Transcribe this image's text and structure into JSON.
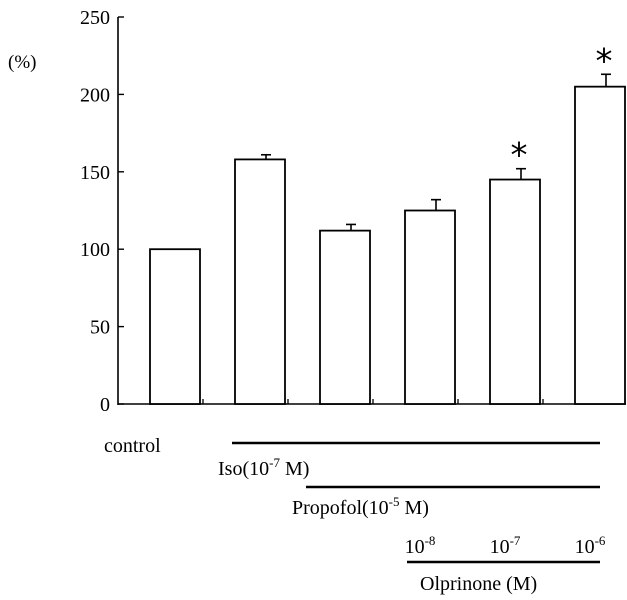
{
  "chart_data": {
    "type": "bar",
    "categories": [
      "control",
      "Iso",
      "Iso + Propofol",
      "Olprinone 10-8",
      "Olprinone 10-7",
      "Olprinone 10-6"
    ],
    "values": [
      100,
      158,
      112,
      125,
      145,
      205
    ],
    "errors": [
      0,
      3,
      4,
      7,
      7,
      8
    ],
    "significance": [
      false,
      false,
      false,
      false,
      true,
      true
    ],
    "significance_mark": "*",
    "ylabel": "(%)",
    "ylim": [
      0,
      250
    ],
    "yticks": [
      0,
      50,
      100,
      150,
      200,
      250
    ],
    "grid": false,
    "bar_color": "#ffffff",
    "edge_color": "#000000",
    "conditions": {
      "control_label": "control",
      "iso": {
        "prefix": "Iso(10",
        "exp": "-7",
        "suffix": " M)",
        "start_bar": 1,
        "end_bar": 5
      },
      "propofol": {
        "prefix": "Propofol(10",
        "exp": "-5",
        "suffix": " M)",
        "start_bar": 2,
        "end_bar": 5
      },
      "olprinone": {
        "label": "Olprinone (M)",
        "start_bar": 3,
        "end_bar": 5,
        "doses": [
          {
            "base": "10",
            "exp": "-8"
          },
          {
            "base": "10",
            "exp": "-7"
          },
          {
            "base": "10",
            "exp": "-6"
          }
        ]
      }
    }
  }
}
